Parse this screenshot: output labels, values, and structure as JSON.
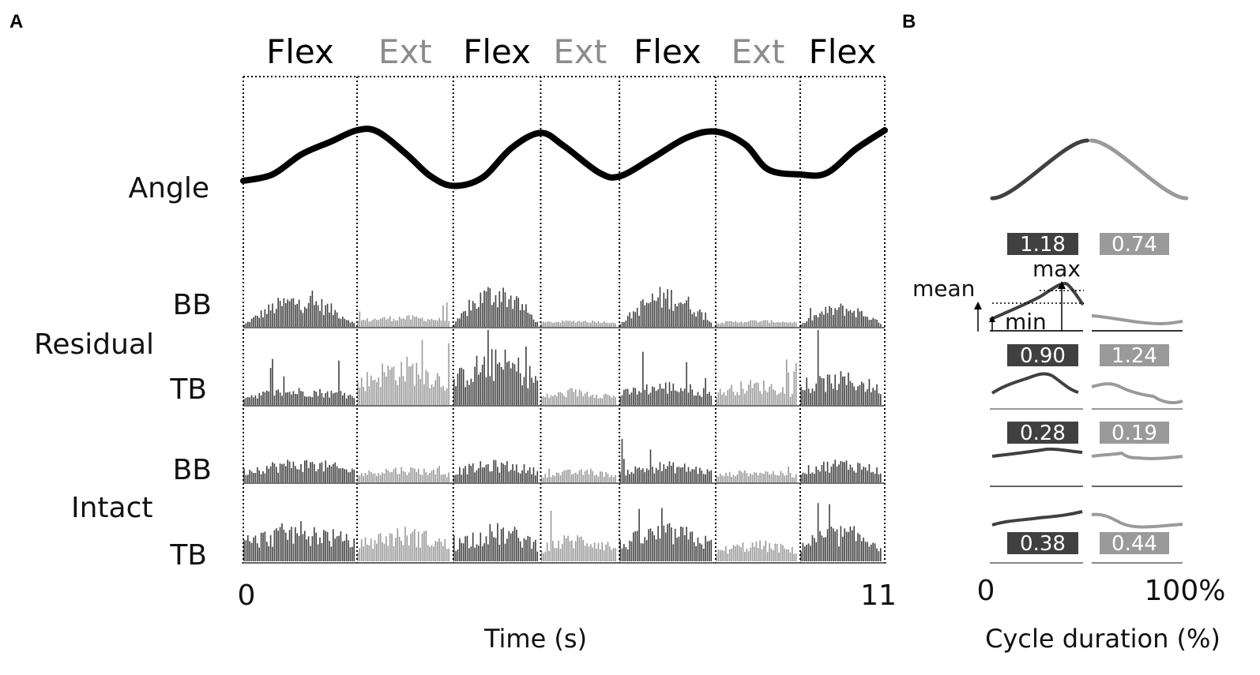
{
  "colors": {
    "flex": "#404040",
    "ext": "#9a9a9a",
    "phase_flex_text": "#000000",
    "phase_ext_text": "#8c8c8c",
    "angle_trace": "#000000"
  },
  "panel_a": {
    "letter": "A",
    "phases": [
      "Flex",
      "Ext",
      "Flex",
      "Ext",
      "Flex",
      "Ext",
      "Flex"
    ],
    "row_labels": {
      "angle": "Angle",
      "residual": "Residual",
      "intact": "Intact",
      "bb": "BB",
      "tb": "TB"
    },
    "x_tick_start": "0",
    "x_tick_end": "11",
    "x_title": "Time (s)"
  },
  "panel_b": {
    "letter": "B",
    "boxes": [
      {
        "flex": "1.18",
        "ext": "0.74"
      },
      {
        "flex": "0.90",
        "ext": "1.24"
      },
      {
        "flex": "0.28",
        "ext": "0.19"
      },
      {
        "flex": "0.38",
        "ext": "0.44"
      }
    ],
    "annotations": {
      "mean": "mean",
      "max": "max",
      "min": "min"
    },
    "x_tick_start": "0",
    "x_tick_end": "100%",
    "x_title": "Cycle duration (%)"
  },
  "chart_data": [
    {
      "type": "line",
      "panel": "A",
      "xlabel": "Time (s)",
      "xlim": [
        0,
        11
      ],
      "phases": [
        {
          "label": "Flex",
          "start": 0.0,
          "end": 1.95
        },
        {
          "label": "Ext",
          "start": 1.95,
          "end": 3.6
        },
        {
          "label": "Flex",
          "start": 3.6,
          "end": 5.1
        },
        {
          "label": "Ext",
          "start": 5.1,
          "end": 6.45
        },
        {
          "label": "Flex",
          "start": 6.45,
          "end": 8.1
        },
        {
          "label": "Ext",
          "start": 8.1,
          "end": 9.55
        },
        {
          "label": "Flex",
          "start": 9.55,
          "end": 11.0
        }
      ],
      "rows": [
        "Angle",
        "Residual BB",
        "Residual TB",
        "Intact BB",
        "Intact TB"
      ],
      "angle_trace": {
        "x": [
          0.0,
          0.5,
          1.0,
          1.5,
          1.95,
          2.3,
          2.8,
          3.2,
          3.6,
          4.1,
          4.6,
          5.1,
          5.5,
          6.1,
          6.45,
          7.0,
          7.6,
          8.1,
          8.6,
          9.0,
          9.55,
          10.0,
          10.5,
          11.0
        ],
        "y": [
          0.2,
          0.3,
          0.62,
          0.82,
          1.0,
          0.98,
          0.62,
          0.28,
          0.12,
          0.25,
          0.72,
          0.96,
          0.75,
          0.33,
          0.27,
          0.55,
          0.88,
          0.98,
          0.78,
          0.38,
          0.3,
          0.32,
          0.7,
          1.0
        ]
      }
    },
    {
      "type": "line",
      "panel": "B",
      "xlabel": "Cycle duration (%)",
      "xlim": [
        0,
        100
      ],
      "series": [
        {
          "row": "Angle",
          "flex_x": [
            0,
            25,
            50
          ],
          "flex_y": [
            0.05,
            0.45,
            1.0
          ],
          "ext_x": [
            50,
            75,
            100
          ],
          "ext_y": [
            1.0,
            0.45,
            0.05
          ]
        },
        {
          "row": "Residual BB",
          "flex_box": 1.18,
          "ext_box": 0.74
        },
        {
          "row": "Residual TB",
          "flex_box": 0.9,
          "ext_box": 1.24
        },
        {
          "row": "Intact BB",
          "flex_box": 0.28,
          "ext_box": 0.19
        },
        {
          "row": "Intact TB",
          "flex_box": 0.38,
          "ext_box": 0.44
        }
      ]
    }
  ]
}
